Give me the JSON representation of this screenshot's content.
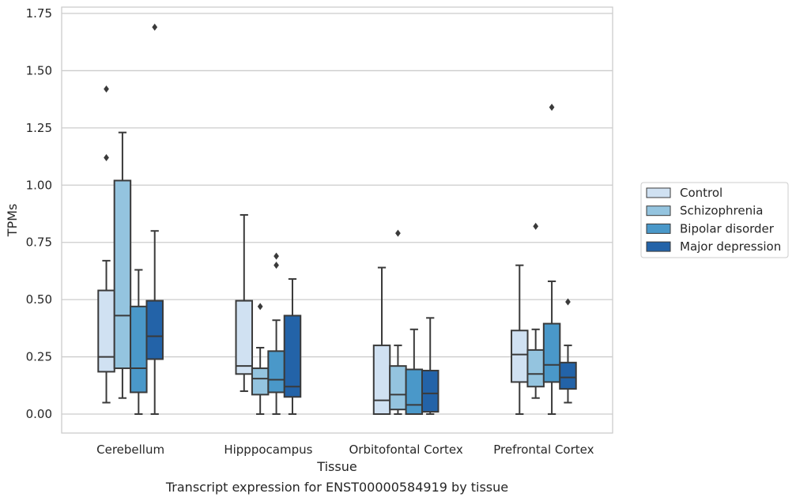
{
  "chart_data": {
    "type": "box",
    "xlabel": "Tissue",
    "ylabel": "TPMs",
    "caption": "Transcript expression for ENST00000584919 by tissue",
    "ylim": [
      -0.08,
      1.77
    ],
    "yticks": [
      "0.00",
      "0.25",
      "0.50",
      "0.75",
      "1.00",
      "1.25",
      "1.50",
      "1.75"
    ],
    "ytick_values": [
      0,
      0.25,
      0.5,
      0.75,
      1.0,
      1.25,
      1.5,
      1.75
    ],
    "grid": "horizontal",
    "legend_position": "right",
    "categories": [
      "Cerebellum",
      "Hipppocampus",
      "Orbitofontal Cortex",
      "Prefrontal Cortex"
    ],
    "series": [
      {
        "name": "Control",
        "color": "#d0e1f2",
        "boxes": [
          {
            "whisker_low": 0.05,
            "q1": 0.185,
            "median": 0.25,
            "q3": 0.54,
            "whisker_high": 0.67,
            "outliers": [
              1.12,
              1.42
            ]
          },
          {
            "whisker_low": 0.1,
            "q1": 0.175,
            "median": 0.21,
            "q3": 0.495,
            "whisker_high": 0.87,
            "outliers": []
          },
          {
            "whisker_low": 0.0,
            "q1": 0.0,
            "median": 0.06,
            "q3": 0.3,
            "whisker_high": 0.64,
            "outliers": []
          },
          {
            "whisker_low": 0.0,
            "q1": 0.14,
            "median": 0.26,
            "q3": 0.365,
            "whisker_high": 0.65,
            "outliers": []
          }
        ]
      },
      {
        "name": "Schizophrenia",
        "color": "#94c4df",
        "boxes": [
          {
            "whisker_low": 0.07,
            "q1": 0.2,
            "median": 0.43,
            "q3": 1.02,
            "whisker_high": 1.23,
            "outliers": []
          },
          {
            "whisker_low": 0.0,
            "q1": 0.085,
            "median": 0.155,
            "q3": 0.2,
            "whisker_high": 0.29,
            "outliers": [
              0.47
            ]
          },
          {
            "whisker_low": 0.0,
            "q1": 0.02,
            "median": 0.085,
            "q3": 0.21,
            "whisker_high": 0.3,
            "outliers": [
              0.79
            ]
          },
          {
            "whisker_low": 0.07,
            "q1": 0.12,
            "median": 0.175,
            "q3": 0.28,
            "whisker_high": 0.37,
            "outliers": [
              0.82
            ]
          }
        ]
      },
      {
        "name": "Bipolar disorder",
        "color": "#4a98c9",
        "boxes": [
          {
            "whisker_low": 0.0,
            "q1": 0.095,
            "median": 0.2,
            "q3": 0.47,
            "whisker_high": 0.63,
            "outliers": []
          },
          {
            "whisker_low": 0.0,
            "q1": 0.095,
            "median": 0.15,
            "q3": 0.275,
            "whisker_high": 0.41,
            "outliers": [
              0.65,
              0.69
            ]
          },
          {
            "whisker_low": 0.0,
            "q1": 0.0,
            "median": 0.04,
            "q3": 0.195,
            "whisker_high": 0.37,
            "outliers": []
          },
          {
            "whisker_low": 0.0,
            "q1": 0.14,
            "median": 0.215,
            "q3": 0.395,
            "whisker_high": 0.58,
            "outliers": [
              1.34
            ]
          }
        ]
      },
      {
        "name": "Major depression",
        "color": "#2363a8",
        "boxes": [
          {
            "whisker_low": 0.0,
            "q1": 0.24,
            "median": 0.34,
            "q3": 0.495,
            "whisker_high": 0.8,
            "outliers": [
              1.69
            ]
          },
          {
            "whisker_low": 0.0,
            "q1": 0.075,
            "median": 0.12,
            "q3": 0.43,
            "whisker_high": 0.59,
            "outliers": []
          },
          {
            "whisker_low": 0.0,
            "q1": 0.01,
            "median": 0.09,
            "q3": 0.19,
            "whisker_high": 0.42,
            "outliers": []
          },
          {
            "whisker_low": 0.05,
            "q1": 0.11,
            "median": 0.16,
            "q3": 0.225,
            "whisker_high": 0.3,
            "outliers": [
              0.49
            ]
          }
        ]
      }
    ]
  }
}
